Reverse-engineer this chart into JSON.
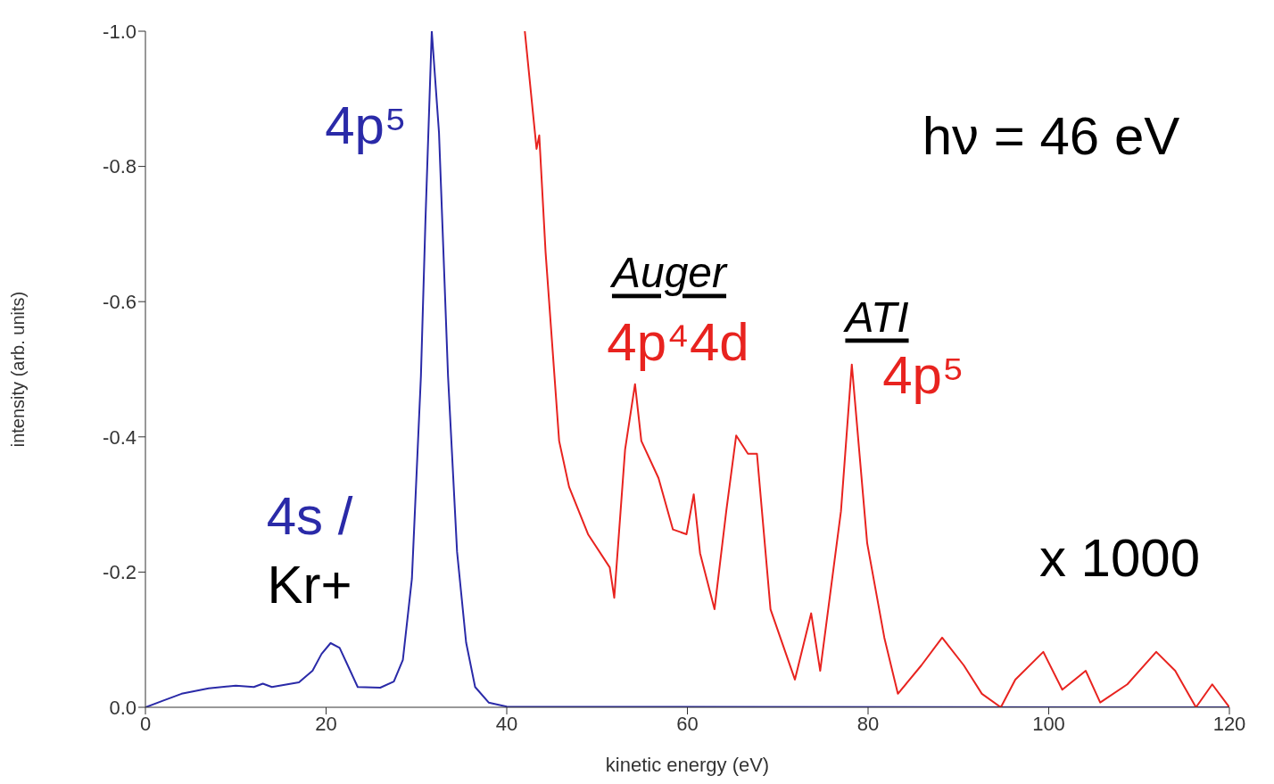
{
  "chart_data": {
    "type": "line",
    "xlabel": "kinetic energy (eV)",
    "ylabel": "intensity (arb. units)",
    "xlim": [
      0,
      120
    ],
    "xticks": [
      0,
      20,
      40,
      60,
      80,
      100,
      120
    ],
    "ylim": [
      0,
      -1.0
    ],
    "yticks": [
      {
        "value": -1.0,
        "label": "-1.0"
      },
      {
        "value": -0.8,
        "label": "-0.8"
      },
      {
        "value": -0.6,
        "label": "-0.6"
      },
      {
        "value": -0.4,
        "label": "-0.4"
      },
      {
        "value": -0.2,
        "label": "-0.2"
      },
      {
        "value": 0,
        "label": "0.0"
      }
    ],
    "grid": false,
    "marker": "none",
    "line_style": "solid",
    "series": [
      {
        "color": "#2a2aa8",
        "x": [
          0,
          2,
          4,
          7,
          10,
          12,
          13,
          14,
          17,
          18.5,
          19.5,
          20.5,
          21.5,
          22.5,
          23.5,
          26,
          27.5,
          28.5,
          29.5,
          30.5,
          31,
          31.7,
          32.5,
          33.5,
          34.5,
          35.5,
          36.5,
          38,
          40,
          120
        ],
        "values": [
          0,
          -0.01,
          -0.02,
          -0.028,
          -0.032,
          -0.03,
          -0.035,
          -0.03,
          -0.037,
          -0.054,
          -0.079,
          -0.095,
          -0.088,
          -0.059,
          -0.03,
          -0.029,
          -0.038,
          -0.07,
          -0.19,
          -0.49,
          -0.72,
          -1.0,
          -0.85,
          -0.49,
          -0.23,
          -0.096,
          -0.03,
          -0.007,
          -0.001,
          0
        ]
      },
      {
        "color": "#e8231f",
        "x": [
          42.0,
          43.3,
          43.6,
          44.3,
          45.8,
          46.9,
          49.0,
          51.4,
          51.9,
          53.1,
          54.2,
          54.9,
          56.8,
          58.4,
          59.9,
          60.7,
          61.4,
          63.0,
          64.3,
          65.4,
          66.7,
          67.7,
          69.2,
          71.9,
          73.7,
          74.7,
          77.0,
          78.2,
          79.9,
          81.8,
          83.3,
          85.9,
          88.2,
          90.6,
          92.6,
          94.7,
          96.3,
          99.4,
          101.5,
          104.1,
          105.7,
          108.7,
          111.9,
          114.0,
          116.3,
          118.1,
          120
        ],
        "values": [
          -1.0,
          -0.826,
          -0.846,
          -0.673,
          -0.394,
          -0.326,
          -0.256,
          -0.207,
          -0.162,
          -0.381,
          -0.478,
          -0.394,
          -0.339,
          -0.263,
          -0.256,
          -0.315,
          -0.228,
          -0.145,
          -0.29,
          -0.402,
          -0.375,
          -0.375,
          -0.145,
          -0.041,
          -0.139,
          -0.054,
          -0.29,
          -0.507,
          -0.243,
          -0.103,
          -0.02,
          -0.062,
          -0.103,
          -0.062,
          -0.02,
          0,
          -0.041,
          -0.082,
          -0.026,
          -0.054,
          -0.007,
          -0.034,
          -0.082,
          -0.054,
          0,
          -0.034,
          0
        ]
      }
    ],
    "annotations": [
      "4p⁵",
      "4s /",
      "Kr+",
      "hν = 46 eV",
      "Auger",
      "4p⁴4d",
      "ATI",
      "4p⁵",
      "x 1000"
    ]
  }
}
